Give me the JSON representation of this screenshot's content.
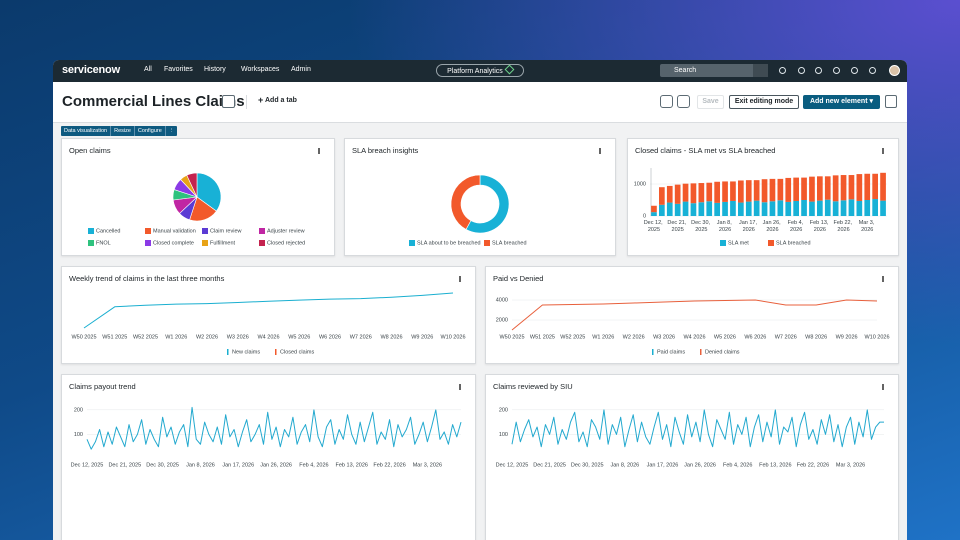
{
  "nav": {
    "logo": "servicenow",
    "menu": [
      "All",
      "Favorites",
      "History",
      "Workspaces",
      "Admin"
    ],
    "center": "Platform Analytics",
    "search": "Search"
  },
  "header": {
    "title": "Commercial Lines Claims",
    "add_tab": "Add a tab",
    "buttons": [
      "Save",
      "Exit editing mode",
      "Add new element"
    ]
  },
  "toolbar": [
    "Data visualization",
    "Resize",
    "Configure"
  ],
  "widgets": [
    {
      "title": "Open claims",
      "chart_data": {
        "type": "pie",
        "categories": [
          "Cancelled",
          "Manual validation",
          "Claim review",
          "Adjuster review",
          "FNOL",
          "Closed complete",
          "Fulfillment",
          "Closed rejected"
        ],
        "values": [
          35,
          20,
          8,
          10,
          7,
          8,
          5,
          7
        ],
        "colors": [
          "#18b1d6",
          "#f2592b",
          "#5b3bd4",
          "#c026a3",
          "#2ec27e",
          "#8b3ae6",
          "#e8a317",
          "#c4234f"
        ]
      }
    },
    {
      "title": "SLA breach insights",
      "chart_data": {
        "type": "donut",
        "categories": [
          "SLA about to be breached",
          "SLA breached"
        ],
        "values": [
          58,
          42
        ],
        "colors": [
          "#18b1d6",
          "#f2592b"
        ]
      }
    },
    {
      "title": "Closed claims - SLA met vs SLA breached",
      "chart_data": {
        "type": "stacked_bar",
        "categories": [
          "Dec 12, 2025",
          null,
          null,
          "Dec 21, 2025",
          null,
          null,
          "Dec 30, 2025",
          null,
          null,
          "Jan 8, 2026",
          null,
          null,
          "Jan 17, 2026",
          null,
          null,
          "Jan 26, 2026",
          null,
          null,
          "Feb 4, 2026",
          null,
          null,
          "Feb 13, 2026",
          null,
          null,
          "Feb 22, 2026",
          null,
          null,
          "Mar 3, 2026",
          null,
          null
        ],
        "series": [
          {
            "name": "SLA met",
            "color": "#18b1d6",
            "values": [
              120,
              350,
              420,
              380,
              450,
              400,
              430,
              460,
              410,
              440,
              470,
              420,
              450,
              480,
              430,
              460,
              490,
              440,
              470,
              500,
              450,
              480,
              510,
              460,
              490,
              520,
              470,
              500,
              530,
              480
            ]
          },
          {
            "name": "SLA breached",
            "color": "#f2592b",
            "values": [
              200,
              550,
              520,
              600,
              560,
              620,
              600,
              580,
              660,
              640,
              610,
              690,
              670,
              640,
              720,
              700,
              670,
              750,
              730,
              700,
              780,
              760,
              730,
              810,
              790,
              760,
              840,
              820,
              790,
              870
            ]
          }
        ],
        "ylim": [
          0,
          1500
        ],
        "yticks": [
          0,
          1000
        ],
        "grid": true
      }
    },
    {
      "title": "Weekly trend of claims in the last three months",
      "chart_data": {
        "type": "line",
        "categories": [
          "W50 2025",
          "W51 2025",
          "W52 2025",
          "W1 2026",
          "W2 2026",
          "W3 2026",
          "W4 2026",
          "W5 2026",
          "W6 2026",
          "W7 2026",
          "W8 2026",
          "W9 2026",
          "W10 2026"
        ],
        "series": [
          {
            "name": "New claims",
            "color": "#1aafd0",
            "values": [
              100,
              900,
              960,
              1000,
              1020,
              1060,
              1110,
              1150,
              1190,
              1210,
              1260,
              1330,
              1420
            ]
          },
          {
            "name": "Closed claims",
            "color": "#f2592b",
            "values": [
              null,
              null,
              null,
              null,
              null,
              null,
              null,
              null,
              null,
              null,
              null,
              null,
              null
            ]
          }
        ]
      }
    },
    {
      "title": "Paid vs Denied",
      "chart_data": {
        "type": "line",
        "categories": [
          "W50 2025",
          "W51 2025",
          "W52 2025",
          "W1 2026",
          "W2 2026",
          "W3 2026",
          "W4 2026",
          "W5 2026",
          "W6 2026",
          "W7 2026",
          "W8 2026",
          "W9 2026",
          "W10 2026"
        ],
        "series": [
          {
            "name": "Paid claims",
            "color": "#1aafd0",
            "values": [
              null,
              null,
              null,
              null,
              null,
              null,
              null,
              null,
              null,
              null,
              null,
              null,
              null
            ]
          },
          {
            "name": "Denied claims",
            "color": "#e8603c",
            "values": [
              1000,
              3500,
              3550,
              3600,
              3700,
              3800,
              3900,
              3950,
              4000,
              3500,
              3500,
              4000,
              3900
            ]
          }
        ],
        "ylim": [
          1000,
          4600
        ],
        "yticks": [
          2000,
          4000
        ],
        "grid": true
      }
    },
    {
      "title": "Claims payout trend",
      "chart_data": {
        "type": "line",
        "categories": [
          "Dec 12, 2025",
          null,
          null,
          null,
          null,
          null,
          null,
          null,
          null,
          "Dec 21, 2025",
          null,
          null,
          null,
          null,
          null,
          null,
          null,
          null,
          "Dec 30, 2025",
          null,
          null,
          null,
          null,
          null,
          null,
          null,
          null,
          "Jan 8, 2026",
          null,
          null,
          null,
          null,
          null,
          null,
          null,
          null,
          "Jan 17, 2026",
          null,
          null,
          null,
          null,
          null,
          null,
          null,
          null,
          "Jan 26, 2026",
          null,
          null,
          null,
          null,
          null,
          null,
          null,
          null,
          "Feb 4, 2026",
          null,
          null,
          null,
          null,
          null,
          null,
          null,
          null,
          "Feb 13, 2026",
          null,
          null,
          null,
          null,
          null,
          null,
          null,
          null,
          "Feb 22, 2026",
          null,
          null,
          null,
          null,
          null,
          null,
          null,
          null,
          "Mar 3, 2026",
          null,
          null,
          null,
          null,
          null,
          null,
          null,
          null
        ],
        "values": [
          80,
          40,
          70,
          120,
          50,
          110,
          60,
          130,
          90,
          50,
          140,
          70,
          100,
          160,
          60,
          120,
          80,
          50,
          170,
          90,
          130,
          60,
          110,
          140,
          50,
          210,
          80,
          60,
          150,
          100,
          70,
          130,
          60,
          180,
          90,
          120,
          50,
          110,
          160,
          70,
          100,
          140,
          60,
          190,
          80,
          130,
          50,
          120,
          90,
          170,
          60,
          110,
          140,
          70,
          200,
          90,
          50,
          130,
          160,
          60,
          120,
          80,
          180,
          100,
          60,
          150,
          70,
          130,
          190,
          60,
          110,
          80,
          160,
          50,
          140,
          90,
          120,
          170,
          60,
          100,
          150,
          70,
          130,
          200,
          80,
          110,
          60,
          140,
          90,
          150
        ],
        "color": "#23a9cf",
        "ylim": [
          0,
          240
        ],
        "yticks": [
          100,
          200
        ],
        "grid": true
      }
    },
    {
      "title": "Claims reviewed by SIU",
      "chart_data": {
        "type": "line",
        "categories": [
          "Dec 12, 2025",
          null,
          null,
          null,
          null,
          null,
          null,
          null,
          null,
          "Dec 21, 2025",
          null,
          null,
          null,
          null,
          null,
          null,
          null,
          null,
          "Dec 30, 2025",
          null,
          null,
          null,
          null,
          null,
          null,
          null,
          null,
          "Jan 8, 2026",
          null,
          null,
          null,
          null,
          null,
          null,
          null,
          null,
          "Jan 17, 2026",
          null,
          null,
          null,
          null,
          null,
          null,
          null,
          null,
          "Jan 26, 2026",
          null,
          null,
          null,
          null,
          null,
          null,
          null,
          null,
          "Feb 4, 2026",
          null,
          null,
          null,
          null,
          null,
          null,
          null,
          null,
          "Feb 13, 2026",
          null,
          null,
          null,
          null,
          null,
          null,
          null,
          null,
          "Feb 22, 2026",
          null,
          null,
          null,
          null,
          null,
          null,
          null,
          null,
          "Mar 3, 2026",
          null,
          null,
          null,
          null,
          null,
          null,
          null,
          null
        ],
        "values": [
          60,
          150,
          70,
          120,
          160,
          90,
          130,
          50,
          140,
          100,
          170,
          60,
          120,
          80,
          150,
          190,
          70,
          110,
          50,
          160,
          130,
          80,
          200,
          60,
          140,
          100,
          170,
          50,
          120,
          180,
          70,
          150,
          90,
          60,
          130,
          190,
          80,
          140,
          50,
          170,
          110,
          60,
          180,
          90,
          150,
          70,
          200,
          100,
          50,
          160,
          120,
          80,
          190,
          60,
          140,
          100,
          170,
          50,
          130,
          180,
          70,
          150,
          90,
          200,
          60,
          130,
          110,
          170,
          50,
          140,
          190,
          80,
          120,
          60,
          160,
          100,
          180,
          70,
          140,
          50,
          130,
          170,
          60,
          150,
          90,
          200,
          80,
          130,
          150,
          150
        ],
        "color": "#23a9cf",
        "ylim": [
          0,
          240
        ],
        "yticks": [
          100,
          200
        ],
        "grid": true
      }
    }
  ]
}
